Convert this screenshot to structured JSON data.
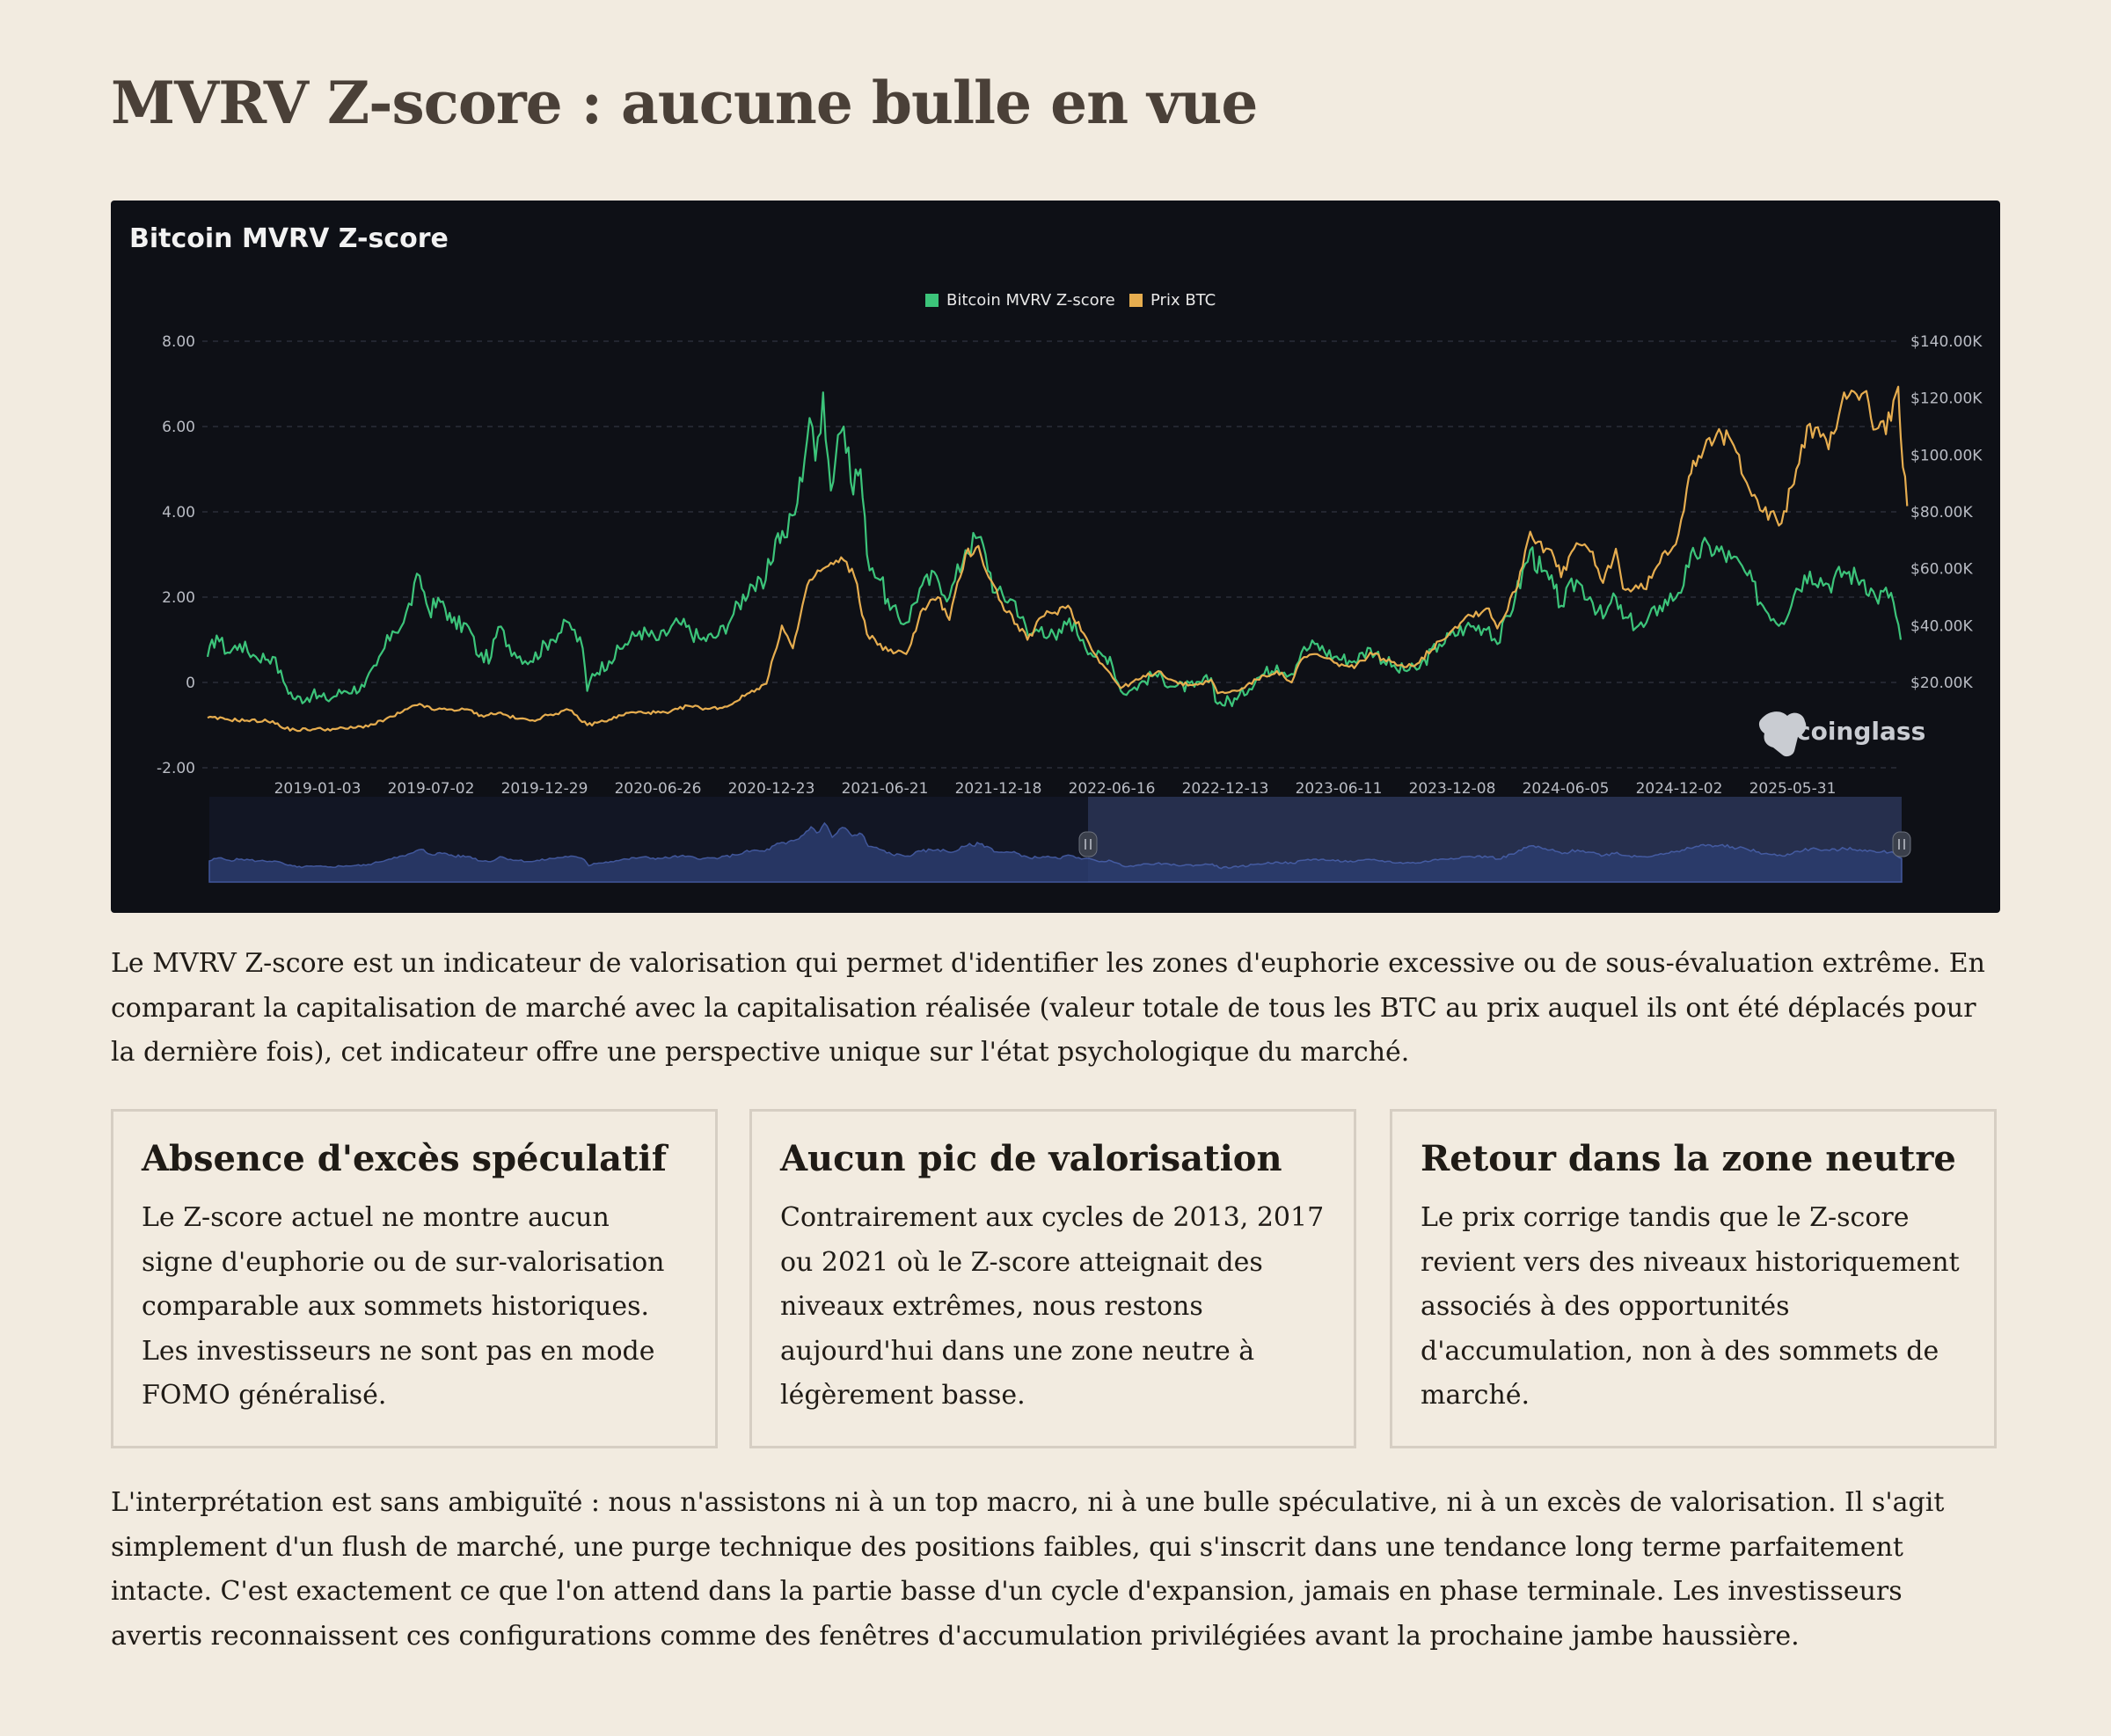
{
  "page": {
    "title": "MVRV Z-score : aucune bulle en vue",
    "intro": "Le MVRV Z-score est un indicateur de valorisation qui permet d'identifier les zones d'euphorie excessive ou de sous-évaluation extrême. En comparant la capitalisation de marché avec la capitalisation réalisée (valeur totale de tous les BTC au prix auquel ils ont été déplacés pour la dernière fois), cet indicateur offre une perspective unique sur l'état psychologique du marché.",
    "outro": "L'interprétation est sans ambiguïté : nous n'assistons ni à un top macro, ni à une bulle spéculative, ni à un excès de valorisation. Il s'agit simplement d'un flush de marché, une purge technique des positions faibles, qui s'inscrit dans une tendance long terme parfaitement intacte. C'est exactement ce que l'on attend dans la partie basse d'un cycle d'expansion, jamais en phase terminale. Les investisseurs avertis reconnaissent ces configurations comme des fenêtres d'accumulation privilégiées avant la prochaine jambe haussière."
  },
  "cards": [
    {
      "title": "Absence d'excès spéculatif",
      "text": "Le Z-score actuel ne montre aucun signe d'euphorie ou de sur-valorisation comparable aux sommets historiques. Les investisseurs ne sont pas en mode FOMO généralisé."
    },
    {
      "title": "Aucun pic de valorisation",
      "text": "Contrairement aux cycles de 2013, 2017 ou 2021 où le Z-score atteignait des niveaux extrêmes, nous restons aujourd'hui dans une zone neutre à légèrement basse."
    },
    {
      "title": "Retour dans la zone neutre",
      "text": "Le prix corrige tandis que le Z-score revient vers des niveaux historiquement associés à des opportunités d'accumulation, non à des sommets de marché."
    }
  ],
  "chart_data": {
    "type": "line",
    "title": "Bitcoin MVRV Z-score",
    "watermark": "coinglass",
    "legend_position": "top-center",
    "grid": true,
    "x_labels": [
      "2019-01-03",
      "2019-07-02",
      "2019-12-29",
      "2020-06-26",
      "2020-12-23",
      "2021-06-21",
      "2021-12-18",
      "2022-06-16",
      "2022-12-13",
      "2023-06-11",
      "2023-12-08",
      "2024-06-05",
      "2024-12-02",
      "2025-05-31"
    ],
    "y_left": {
      "ticks": [
        8,
        6,
        4,
        2,
        0,
        -2
      ],
      "tick_labels": [
        "8.00",
        "6.00",
        "4.00",
        "2.00",
        "0",
        "-2.00"
      ],
      "range": [
        -2,
        8
      ]
    },
    "y_right": {
      "ticks": [
        140000,
        120000,
        100000,
        80000,
        60000,
        40000,
        20000
      ],
      "tick_labels": [
        "$140.00K",
        "$120.00K",
        "$100.00K",
        "$80.00K",
        "$60.00K",
        "$40.00K",
        "$20.00K"
      ],
      "range": [
        -10000,
        140000
      ]
    },
    "x_range": [
      "2018-08-01",
      "2025-10-10"
    ],
    "series": [
      {
        "name": "Bitcoin MVRV Z-score",
        "axis": "left",
        "color": "#3cc47a",
        "points": [
          [
            "2018-08-01",
            0.6
          ],
          [
            "2018-08-15",
            1.1
          ],
          [
            "2018-09-01",
            0.7
          ],
          [
            "2018-09-20",
            0.9
          ],
          [
            "2018-10-15",
            0.6
          ],
          [
            "2018-11-10",
            0.6
          ],
          [
            "2018-12-01",
            -0.1
          ],
          [
            "2018-12-15",
            -0.4
          ],
          [
            "2019-01-10",
            -0.3
          ],
          [
            "2019-02-01",
            -0.4
          ],
          [
            "2019-03-01",
            -0.2
          ],
          [
            "2019-04-01",
            -0.1
          ],
          [
            "2019-04-20",
            0.4
          ],
          [
            "2019-05-15",
            1.2
          ],
          [
            "2019-06-01",
            1.4
          ],
          [
            "2019-06-26",
            2.5
          ],
          [
            "2019-07-10",
            1.7
          ],
          [
            "2019-08-01",
            1.9
          ],
          [
            "2019-08-15",
            1.4
          ],
          [
            "2019-09-10",
            1.3
          ],
          [
            "2019-09-26",
            0.6
          ],
          [
            "2019-10-15",
            0.6
          ],
          [
            "2019-10-26",
            1.3
          ],
          [
            "2019-11-20",
            0.7
          ],
          [
            "2019-12-15",
            0.5
          ],
          [
            "2020-01-15",
            1.0
          ],
          [
            "2020-02-13",
            1.4
          ],
          [
            "2020-03-05",
            0.8
          ],
          [
            "2020-03-12",
            -0.2
          ],
          [
            "2020-03-20",
            0.2
          ],
          [
            "2020-04-15",
            0.5
          ],
          [
            "2020-05-10",
            0.9
          ],
          [
            "2020-06-01",
            1.2
          ],
          [
            "2020-07-01",
            1.0
          ],
          [
            "2020-08-01",
            1.4
          ],
          [
            "2020-09-05",
            1.0
          ],
          [
            "2020-10-01",
            1.1
          ],
          [
            "2020-10-25",
            1.6
          ],
          [
            "2020-11-20",
            2.3
          ],
          [
            "2020-12-10",
            2.2
          ],
          [
            "2021-01-02",
            3.5
          ],
          [
            "2021-01-12",
            3.4
          ],
          [
            "2021-02-01",
            4.2
          ],
          [
            "2021-02-20",
            6.2
          ],
          [
            "2021-03-01",
            5.2
          ],
          [
            "2021-03-13",
            6.8
          ],
          [
            "2021-03-25",
            4.5
          ],
          [
            "2021-04-05",
            5.8
          ],
          [
            "2021-04-14",
            6.0
          ],
          [
            "2021-04-25",
            4.7
          ],
          [
            "2021-05-10",
            5.0
          ],
          [
            "2021-05-20",
            3.0
          ],
          [
            "2021-06-10",
            2.4
          ],
          [
            "2021-06-25",
            1.7
          ],
          [
            "2021-07-20",
            1.4
          ],
          [
            "2021-08-10",
            2.2
          ],
          [
            "2021-09-05",
            2.5
          ],
          [
            "2021-09-25",
            2.0
          ],
          [
            "2021-10-20",
            3.1
          ],
          [
            "2021-11-09",
            3.4
          ],
          [
            "2021-11-20",
            3.0
          ],
          [
            "2021-12-05",
            2.1
          ],
          [
            "2022-01-05",
            1.9
          ],
          [
            "2022-01-25",
            1.1
          ],
          [
            "2022-02-15",
            1.3
          ],
          [
            "2022-03-10",
            1.0
          ],
          [
            "2022-03-30",
            1.5
          ],
          [
            "2022-04-20",
            1.0
          ],
          [
            "2022-05-10",
            0.6
          ],
          [
            "2022-06-01",
            0.6
          ],
          [
            "2022-06-18",
            -0.2
          ],
          [
            "2022-07-01",
            -0.2
          ],
          [
            "2022-08-10",
            0.2
          ],
          [
            "2022-09-10",
            -0.1
          ],
          [
            "2022-10-10",
            -0.1
          ],
          [
            "2022-11-05",
            0.1
          ],
          [
            "2022-11-15",
            -0.5
          ],
          [
            "2022-12-15",
            -0.4
          ],
          [
            "2023-01-15",
            0.1
          ],
          [
            "2023-02-15",
            0.4
          ],
          [
            "2023-03-10",
            0.2
          ],
          [
            "2023-03-25",
            0.7
          ],
          [
            "2023-04-15",
            0.9
          ],
          [
            "2023-05-15",
            0.6
          ],
          [
            "2023-06-15",
            0.5
          ],
          [
            "2023-07-10",
            0.8
          ],
          [
            "2023-08-20",
            0.3
          ],
          [
            "2023-09-20",
            0.3
          ],
          [
            "2023-10-25",
            0.9
          ],
          [
            "2023-12-05",
            1.3
          ],
          [
            "2024-01-10",
            1.3
          ],
          [
            "2024-01-23",
            0.9
          ],
          [
            "2024-02-20",
            2.0
          ],
          [
            "2024-03-14",
            3.1
          ],
          [
            "2024-04-01",
            2.6
          ],
          [
            "2024-04-20",
            2.2
          ],
          [
            "2024-05-01",
            1.8
          ],
          [
            "2024-05-25",
            2.4
          ],
          [
            "2024-06-15",
            2.0
          ],
          [
            "2024-07-05",
            1.5
          ],
          [
            "2024-07-25",
            2.0
          ],
          [
            "2024-08-05",
            1.5
          ],
          [
            "2024-09-06",
            1.3
          ],
          [
            "2024-10-01",
            1.8
          ],
          [
            "2024-10-30",
            2.1
          ],
          [
            "2024-11-15",
            2.7
          ],
          [
            "2024-11-25",
            3.0
          ],
          [
            "2024-12-17",
            3.2
          ],
          [
            "2025-01-20",
            2.9
          ],
          [
            "2025-02-10",
            2.6
          ],
          [
            "2025-03-10",
            1.8
          ],
          [
            "2025-04-08",
            1.4
          ],
          [
            "2025-05-01",
            2.2
          ],
          [
            "2025-05-22",
            2.6
          ],
          [
            "2025-06-20",
            2.3
          ],
          [
            "2025-07-14",
            2.6
          ],
          [
            "2025-08-14",
            2.4
          ],
          [
            "2025-09-01",
            2.0
          ],
          [
            "2025-09-25",
            2.1
          ],
          [
            "2025-10-10",
            1.0
          ]
        ]
      },
      {
        "name": "Prix BTC",
        "axis": "right",
        "color": "#e6ad4f",
        "points": [
          [
            "2018-08-01",
            7600
          ],
          [
            "2018-09-01",
            7000
          ],
          [
            "2018-10-01",
            6600
          ],
          [
            "2018-11-10",
            6400
          ],
          [
            "2018-11-25",
            4000
          ],
          [
            "2018-12-15",
            3300
          ],
          [
            "2019-01-15",
            3600
          ],
          [
            "2019-02-15",
            3600
          ],
          [
            "2019-03-15",
            4000
          ],
          [
            "2019-04-15",
            5200
          ],
          [
            "2019-05-15",
            8000
          ],
          [
            "2019-06-26",
            12500
          ],
          [
            "2019-07-15",
            10500
          ],
          [
            "2019-08-15",
            10500
          ],
          [
            "2019-09-15",
            10200
          ],
          [
            "2019-09-26",
            8200
          ],
          [
            "2019-10-26",
            9300
          ],
          [
            "2019-11-25",
            7200
          ],
          [
            "2019-12-18",
            6700
          ],
          [
            "2020-01-15",
            8700
          ],
          [
            "2020-02-13",
            10300
          ],
          [
            "2020-03-12",
            5000
          ],
          [
            "2020-04-15",
            6900
          ],
          [
            "2020-05-15",
            9300
          ],
          [
            "2020-06-15",
            9500
          ],
          [
            "2020-07-15",
            9200
          ],
          [
            "2020-08-15",
            11800
          ],
          [
            "2020-09-15",
            10700
          ],
          [
            "2020-10-15",
            11500
          ],
          [
            "2020-11-15",
            16000
          ],
          [
            "2020-12-15",
            19500
          ],
          [
            "2021-01-08",
            40000
          ],
          [
            "2021-01-25",
            32000
          ],
          [
            "2021-02-20",
            56000
          ],
          [
            "2021-03-13",
            60000
          ],
          [
            "2021-04-14",
            63000
          ],
          [
            "2021-05-01",
            57000
          ],
          [
            "2021-05-20",
            37000
          ],
          [
            "2021-06-22",
            31000
          ],
          [
            "2021-07-20",
            30000
          ],
          [
            "2021-08-15",
            46000
          ],
          [
            "2021-09-07",
            50000
          ],
          [
            "2021-09-25",
            42000
          ],
          [
            "2021-10-20",
            65000
          ],
          [
            "2021-11-09",
            68000
          ],
          [
            "2021-11-25",
            57000
          ],
          [
            "2021-12-15",
            48000
          ],
          [
            "2022-01-24",
            35000
          ],
          [
            "2022-02-15",
            43000
          ],
          [
            "2022-03-28",
            47000
          ],
          [
            "2022-05-12",
            29000
          ],
          [
            "2022-06-18",
            18000
          ],
          [
            "2022-07-15",
            21000
          ],
          [
            "2022-08-15",
            24000
          ],
          [
            "2022-09-15",
            19500
          ],
          [
            "2022-10-15",
            19200
          ],
          [
            "2022-11-05",
            21000
          ],
          [
            "2022-11-15",
            16200
          ],
          [
            "2022-12-15",
            17000
          ],
          [
            "2023-01-15",
            21000
          ],
          [
            "2023-02-15",
            24000
          ],
          [
            "2023-03-10",
            20000
          ],
          [
            "2023-03-25",
            28000
          ],
          [
            "2023-04-15",
            30000
          ],
          [
            "2023-05-15",
            27000
          ],
          [
            "2023-06-15",
            25000
          ],
          [
            "2023-07-10",
            30500
          ],
          [
            "2023-08-20",
            26000
          ],
          [
            "2023-09-20",
            26500
          ],
          [
            "2023-10-25",
            34500
          ],
          [
            "2023-12-05",
            43000
          ],
          [
            "2024-01-10",
            46000
          ],
          [
            "2024-01-23",
            39000
          ],
          [
            "2024-02-20",
            52000
          ],
          [
            "2024-03-14",
            73000
          ],
          [
            "2024-04-20",
            64000
          ],
          [
            "2024-05-01",
            57000
          ],
          [
            "2024-05-25",
            69000
          ],
          [
            "2024-06-15",
            66000
          ],
          [
            "2024-07-05",
            55000
          ],
          [
            "2024-07-25",
            67000
          ],
          [
            "2024-08-05",
            53000
          ],
          [
            "2024-09-06",
            53000
          ],
          [
            "2024-10-01",
            62000
          ],
          [
            "2024-10-30",
            72000
          ],
          [
            "2024-11-12",
            88000
          ],
          [
            "2024-11-22",
            98000
          ],
          [
            "2024-12-17",
            106000
          ],
          [
            "2025-01-20",
            105000
          ],
          [
            "2025-02-25",
            86000
          ],
          [
            "2025-03-10",
            80000
          ],
          [
            "2025-04-08",
            76000
          ],
          [
            "2025-05-01",
            95000
          ],
          [
            "2025-05-22",
            111000
          ],
          [
            "2025-06-20",
            102000
          ],
          [
            "2025-07-14",
            122000
          ],
          [
            "2025-08-14",
            122000
          ],
          [
            "2025-09-01",
            109000
          ],
          [
            "2025-09-25",
            112000
          ],
          [
            "2025-10-06",
            124000
          ],
          [
            "2025-10-10",
            106000
          ],
          [
            "2025-10-20",
            82000
          ]
        ]
      }
    ]
  },
  "colors": {
    "background": "#f2ebe0",
    "chart_background": "#0e1016",
    "zscore": "#3cc47a",
    "price": "#e6ad4f",
    "title": "#4a4038"
  }
}
